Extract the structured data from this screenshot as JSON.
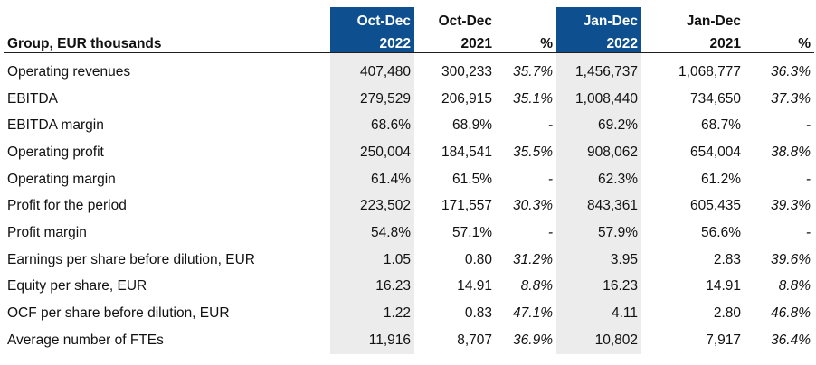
{
  "table": {
    "title": "Group, EUR thousands",
    "columns": [
      {
        "line1": "Oct-Dec",
        "line2": "2022",
        "highlight": true
      },
      {
        "line1": "Oct-Dec",
        "line2": "2021",
        "highlight": false
      },
      {
        "line1": "",
        "line2": "%",
        "highlight": false
      },
      {
        "line1": "Jan-Dec",
        "line2": "2022",
        "highlight": true
      },
      {
        "line1": "Jan-Dec",
        "line2": "2021",
        "highlight": false
      },
      {
        "line1": "",
        "line2": "%",
        "highlight": false
      }
    ],
    "rows": [
      {
        "label": "Operating revenues",
        "values": [
          "407,480",
          "300,233",
          "35.7%",
          "1,456,737",
          "1,068,777",
          "36.3%"
        ]
      },
      {
        "label": "EBITDA",
        "values": [
          "279,529",
          "206,915",
          "35.1%",
          "1,008,440",
          "734,650",
          "37.3%"
        ]
      },
      {
        "label": "EBITDA margin",
        "values": [
          "68.6%",
          "68.9%",
          "-",
          "69.2%",
          "68.7%",
          "-"
        ]
      },
      {
        "label": "Operating profit",
        "values": [
          "250,004",
          "184,541",
          "35.5%",
          "908,062",
          "654,004",
          "38.8%"
        ]
      },
      {
        "label": "Operating margin",
        "values": [
          "61.4%",
          "61.5%",
          "-",
          "62.3%",
          "61.2%",
          "-"
        ]
      },
      {
        "label": "Profit for the period",
        "values": [
          "223,502",
          "171,557",
          "30.3%",
          "843,361",
          "605,435",
          "39.3%"
        ]
      },
      {
        "label": "Profit margin",
        "values": [
          "54.8%",
          "57.1%",
          "-",
          "57.9%",
          "56.6%",
          "-"
        ]
      },
      {
        "label": "Earnings per share before dilution, EUR",
        "values": [
          "1.05",
          "0.80",
          "31.2%",
          "3.95",
          "2.83",
          "39.6%"
        ]
      },
      {
        "label": "Equity per share, EUR",
        "values": [
          "16.23",
          "14.91",
          "8.8%",
          "16.23",
          "14.91",
          "8.8%"
        ]
      },
      {
        "label": "OCF per share before dilution, EUR",
        "values": [
          "1.22",
          "0.83",
          "47.1%",
          "4.11",
          "2.80",
          "46.8%"
        ]
      },
      {
        "label": "Average number of FTEs",
        "values": [
          "11,916",
          "8,707",
          "36.9%",
          "10,802",
          "7,917",
          "36.4%"
        ]
      }
    ],
    "colors": {
      "highlight_header": "#0d4f8f",
      "shade": "#ececec"
    }
  }
}
